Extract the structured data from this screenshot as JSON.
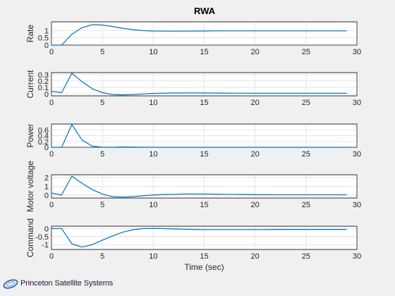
{
  "figure_title": "RWA",
  "logo_text": "Princeton Satellite Systems",
  "colors": {
    "series": "#0072bd",
    "background": "#f0f0f0",
    "axes": "#ffffff"
  },
  "chart_data": [
    {
      "type": "line",
      "title": "RWA",
      "ylabel": "Rate",
      "xlabel": "",
      "xlim": [
        0,
        30
      ],
      "ylim": [
        0,
        1.6
      ],
      "xticks": [
        0,
        5,
        10,
        15,
        20,
        25,
        30
      ],
      "yticks": [
        0,
        0.5,
        1
      ],
      "ytick_labels": [
        "0",
        "0.5",
        "1"
      ],
      "grid": true,
      "series": [
        {
          "x": [
            0,
            1,
            2,
            3,
            4,
            5,
            6,
            7,
            8,
            9,
            10,
            11,
            12,
            13,
            14,
            15,
            16,
            17,
            18,
            19,
            20,
            21,
            22,
            23,
            24,
            25,
            26,
            27,
            28,
            29
          ],
          "values": [
            0,
            0,
            0.75,
            1.2,
            1.4,
            1.38,
            1.28,
            1.16,
            1.06,
            1.0,
            0.97,
            0.96,
            0.96,
            0.96,
            0.97,
            0.97,
            0.98,
            0.98,
            0.98,
            0.98,
            0.98,
            0.98,
            0.98,
            0.98,
            0.98,
            0.98,
            0.98,
            0.98,
            0.98,
            0.98
          ]
        }
      ]
    },
    {
      "type": "line",
      "ylabel": "Current",
      "xlabel": "",
      "xlim": [
        0,
        30
      ],
      "ylim": [
        -0.03,
        0.33
      ],
      "xticks": [
        0,
        5,
        10,
        15,
        20,
        25,
        30
      ],
      "yticks": [
        0,
        0.1,
        0.2,
        0.3
      ],
      "ytick_labels": [
        "0",
        "0.1",
        "0.2",
        "0.3"
      ],
      "grid": true,
      "series": [
        {
          "x": [
            0,
            1,
            2,
            3,
            4,
            5,
            6,
            7,
            8,
            9,
            10,
            11,
            12,
            13,
            14,
            15,
            16,
            17,
            18,
            19,
            20,
            21,
            22,
            23,
            24,
            25,
            26,
            27,
            28,
            29
          ],
          "values": [
            0.04,
            0.02,
            0.32,
            0.19,
            0.08,
            0.02,
            -0.01,
            -0.015,
            -0.01,
            0,
            0.008,
            0.012,
            0.015,
            0.016,
            0.016,
            0.015,
            0.014,
            0.013,
            0.012,
            0.011,
            0.01,
            0.01,
            0.01,
            0.01,
            0.01,
            0.01,
            0.01,
            0.01,
            0.01,
            0.01
          ]
        }
      ]
    },
    {
      "type": "line",
      "ylabel": "Power",
      "xlabel": "",
      "xlim": [
        0,
        30
      ],
      "ylim": [
        0,
        0.8
      ],
      "xticks": [
        0,
        5,
        10,
        15,
        20,
        25,
        30
      ],
      "yticks": [
        0,
        0.2,
        0.4,
        0.6
      ],
      "ytick_labels": [
        "0",
        "0.2",
        "0.4",
        "0.6"
      ],
      "grid": true,
      "series": [
        {
          "x": [
            0,
            1,
            2,
            3,
            4,
            5,
            6,
            7,
            8,
            9,
            10,
            11,
            12,
            13,
            14,
            15,
            16,
            17,
            18,
            19,
            20,
            21,
            22,
            23,
            24,
            25,
            26,
            27,
            28,
            29
          ],
          "values": [
            0,
            0,
            0.78,
            0.25,
            0.04,
            0.005,
            0.005,
            0.012,
            0.01,
            0.005,
            0.002,
            0,
            0,
            0,
            0,
            0,
            0,
            0,
            0,
            0,
            0,
            0,
            0,
            0,
            0,
            0,
            0,
            0,
            0,
            0
          ]
        }
      ]
    },
    {
      "type": "line",
      "ylabel": "Motor voltage",
      "xlabel": "",
      "xlim": [
        0,
        30
      ],
      "ylim": [
        -0.3,
        2.3
      ],
      "xticks": [
        0,
        5,
        10,
        15,
        20,
        25,
        30
      ],
      "yticks": [
        0,
        1,
        2
      ],
      "ytick_labels": [
        "0",
        "1",
        "2"
      ],
      "grid": true,
      "series": [
        {
          "x": [
            0,
            1,
            2,
            3,
            4,
            5,
            6,
            7,
            8,
            9,
            10,
            11,
            12,
            13,
            14,
            15,
            16,
            17,
            18,
            19,
            20,
            21,
            22,
            23,
            24,
            25,
            26,
            27,
            28,
            29
          ],
          "values": [
            0.25,
            0.05,
            2.15,
            1.35,
            0.65,
            0.15,
            -0.15,
            -0.2,
            -0.15,
            -0.05,
            0.05,
            0.1,
            0.12,
            0.14,
            0.14,
            0.14,
            0.13,
            0.12,
            0.11,
            0.1,
            0.09,
            0.09,
            0.08,
            0.08,
            0.08,
            0.08,
            0.08,
            0.08,
            0.08,
            0.08
          ]
        }
      ]
    },
    {
      "type": "line",
      "ylabel": "Command",
      "xlabel": "Time (sec)",
      "xlim": [
        0,
        30
      ],
      "ylim": [
        -1.3,
        0.15
      ],
      "xticks": [
        0,
        5,
        10,
        15,
        20,
        25,
        30
      ],
      "yticks": [
        -1,
        -0.5,
        0
      ],
      "ytick_labels": [
        "-1",
        "-0.5",
        "0"
      ],
      "grid": true,
      "series": [
        {
          "x": [
            0,
            1,
            2,
            3,
            4,
            5,
            6,
            7,
            8,
            9,
            10,
            11,
            12,
            13,
            14,
            15,
            16,
            17,
            18,
            19,
            20,
            21,
            22,
            23,
            24,
            25,
            26,
            27,
            28,
            29
          ],
          "values": [
            0,
            0,
            -0.95,
            -1.15,
            -1.0,
            -0.72,
            -0.45,
            -0.22,
            -0.07,
            0.0,
            0.02,
            0.0,
            -0.02,
            -0.04,
            -0.05,
            -0.06,
            -0.06,
            -0.06,
            -0.06,
            -0.06,
            -0.06,
            -0.06,
            -0.05,
            -0.05,
            -0.05,
            -0.05,
            -0.05,
            -0.05,
            -0.05,
            -0.05
          ]
        }
      ]
    }
  ]
}
